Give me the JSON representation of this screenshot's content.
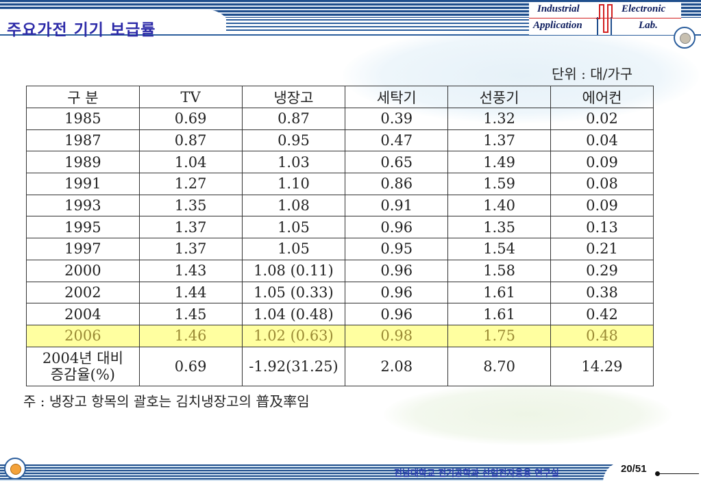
{
  "header": {
    "title": "주요가전 기기 보급률",
    "logo_words": [
      "Industrial",
      "Electronic",
      "Application",
      "Lab."
    ]
  },
  "unit_label": "단위 : 대/가구",
  "table": {
    "headers": [
      "구  분",
      "TV",
      "냉장고",
      "세탁기",
      "선풍기",
      "에어컨"
    ],
    "rows": [
      [
        "1985",
        "0.69",
        "0.87",
        "0.39",
        "1.32",
        "0.02"
      ],
      [
        "1987",
        "0.87",
        "0.95",
        "0.47",
        "1.37",
        "0.04"
      ],
      [
        "1989",
        "1.04",
        "1.03",
        "0.65",
        "1.49",
        "0.09"
      ],
      [
        "1991",
        "1.27",
        "1.10",
        "0.86",
        "1.59",
        "0.08"
      ],
      [
        "1993",
        "1.35",
        "1.08",
        "0.91",
        "1.40",
        "0.09"
      ],
      [
        "1995",
        "1.37",
        "1.05",
        "0.96",
        "1.35",
        "0.13"
      ],
      [
        "1997",
        "1.37",
        "1.05",
        "0.95",
        "1.54",
        "0.21"
      ],
      [
        "2000",
        "1.43",
        "1.08 (0.11)",
        "0.96",
        "1.58",
        "0.29"
      ],
      [
        "2002",
        "1.44",
        "1.05 (0.33)",
        "0.96",
        "1.61",
        "0.38"
      ],
      [
        "2004",
        "1.45",
        "1.04 (0.48)",
        "0.96",
        "1.61",
        "0.42"
      ],
      [
        "2006",
        "1.46",
        "1.02 (0.63)",
        "0.98",
        "1.75",
        "0.48"
      ]
    ],
    "highlight_row_label": "2006",
    "summary": {
      "label_line1": "2004년 대비",
      "label_line2": "증감율(%)",
      "values": [
        "0.69",
        "-1.92(31.25)",
        "2.08",
        "8.70",
        "14.29"
      ]
    }
  },
  "note": "주 : 냉장고 항목의 괄호는 김치냉장고의 普及率임",
  "footer": {
    "org_text": "전남대학교 전기공학과 산업전자응용 연구실",
    "page_number": "20/51"
  },
  "colors": {
    "title": "#2c2aa8",
    "highlight_bg": "#ffffa0",
    "highlight_text": "#9a8a35",
    "stripe": "#1f4e8c"
  }
}
